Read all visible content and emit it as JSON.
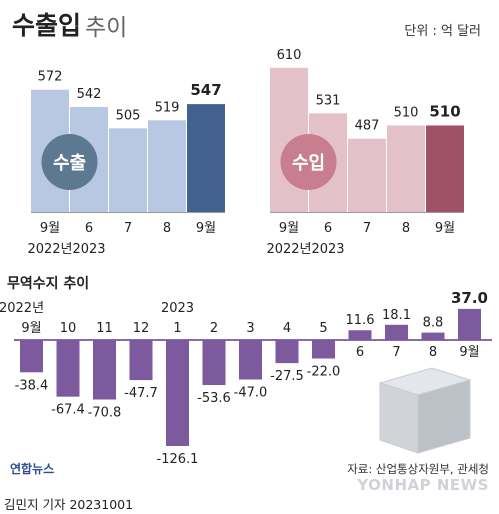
{
  "title": "수출입",
  "subtitle": "추이",
  "unit": "단위 : 억 달러",
  "chart_data": [
    {
      "type": "bar",
      "label": "수출",
      "categories": [
        "9월|2022년",
        "6|2023",
        "7",
        "8",
        "9월"
      ],
      "values": [
        572,
        542,
        505,
        519,
        547
      ],
      "colors": {
        "normal": "#b8c8e2",
        "highlight": "#41618f",
        "badge": "#5d7891"
      }
    },
    {
      "type": "bar",
      "label": "수입",
      "categories": [
        "9월|2022년",
        "6|2023",
        "7",
        "8",
        "9월"
      ],
      "values": [
        610,
        531,
        487,
        510,
        510
      ],
      "colors": {
        "normal": "#e4c0c8",
        "highlight": "#9f5266",
        "badge": "#c77f90"
      }
    },
    {
      "type": "bar",
      "title": "무역수지 추이",
      "categories": [
        "9월",
        "10",
        "11",
        "12",
        "1",
        "2",
        "3",
        "4",
        "5",
        "6",
        "7",
        "8",
        "9월"
      ],
      "year_labels": [
        {
          "text": "2022년",
          "at": 0
        },
        {
          "text": "2023",
          "at": 4
        }
      ],
      "values": [
        -38.4,
        -67.4,
        -70.8,
        -47.7,
        -126.1,
        -53.6,
        -47.0,
        -27.5,
        -22.0,
        11.6,
        18.1,
        8.8,
        37.0
      ],
      "value_labels": [
        "-38.4",
        "-67.4",
        "-70.8",
        "-47.7",
        "-126.1",
        "-53.6",
        "-47.0",
        "-27.5",
        "-22.0",
        "11.6",
        "18.1",
        "8.8",
        "37.0"
      ],
      "colors": {
        "bar": "#7d5a9e",
        "axis": "#8a6aa8"
      }
    }
  ],
  "footer": {
    "source": "자료: 산업통상자원부, 관세청",
    "credit": "김민지 기자  20231001",
    "logo_left": "연합뉴스",
    "logo_right": "YONHAP NEWS"
  }
}
